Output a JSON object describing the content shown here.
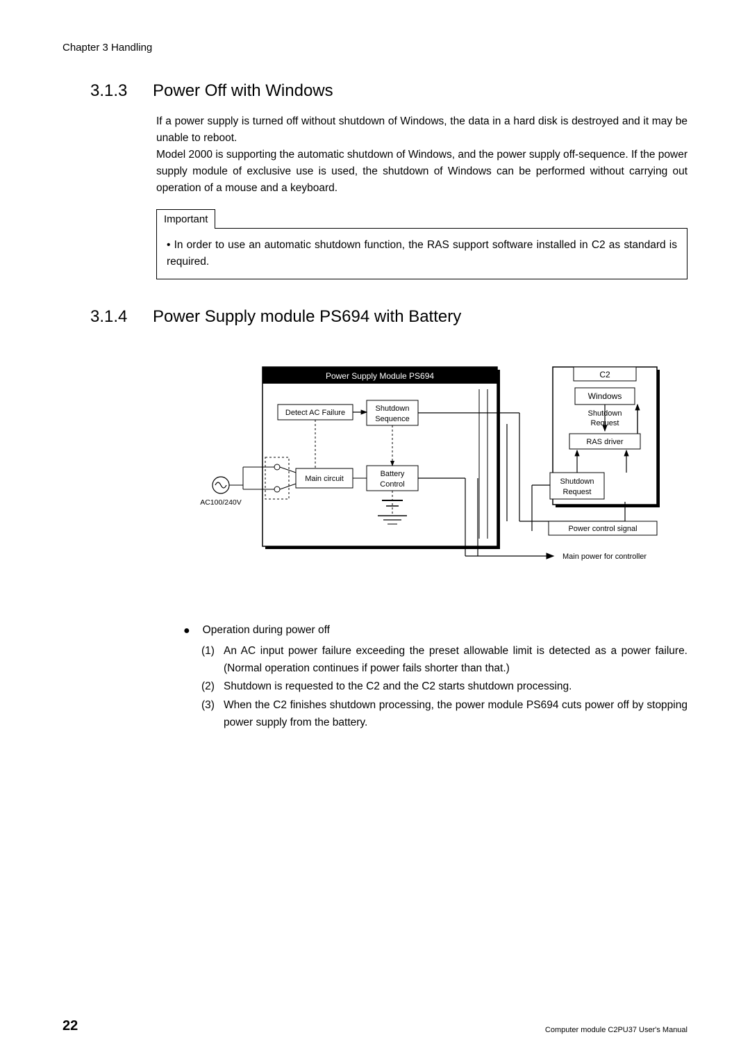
{
  "chapter_header": "Chapter 3 Handling",
  "section313": {
    "num": "3.1.3",
    "title": "Power Off with Windows",
    "para": "If a power supply is turned off without shutdown of Windows, the data in a hard disk is destroyed and it may be unable to reboot.\nModel 2000 is supporting the automatic shutdown of Windows, and the power supply off-sequence. If the power supply module of exclusive use is used, the shutdown of Windows can be performed without carrying out operation of a mouse and a keyboard."
  },
  "important": {
    "label": "Important",
    "text": "• In order to use an automatic shutdown function, the RAS support software installed in C2 as standard is required."
  },
  "section314": {
    "num": "3.1.4",
    "title": "Power Supply module PS694 with Battery"
  },
  "diagram": {
    "ps694_title": "Power Supply Module PS694",
    "c2_title": "C2",
    "windows": "Windows",
    "shutdown_req1": "Shutdown",
    "shutdown_req2": "Request",
    "ras_driver": "RAS driver",
    "shutdown_req_box1": "Shutdown",
    "shutdown_req_box2": "Request",
    "detect_ac": "Detect AC Failure",
    "shut_seq1": "Shutdown",
    "shut_seq2": "Sequence",
    "main_circuit": "Main circuit",
    "battery_ctrl1": "Battery",
    "battery_ctrl2": "Control",
    "ac_label": "AC100/240V",
    "pcs": "Power control signal",
    "main_power": "Main power for controller"
  },
  "bullets": {
    "main": "Operation during power off",
    "items": [
      {
        "n": "(1)",
        "t": "An AC input power failure exceeding the preset allowable limit is detected as a power failure. (Normal operation continues if power fails shorter than that.)"
      },
      {
        "n": "(2)",
        "t": "Shutdown is requested to the C2 and the C2 starts shutdown processing."
      },
      {
        "n": "(3)",
        "t": "When the C2 finishes shutdown processing, the power module PS694 cuts power off by stopping power supply from the battery."
      }
    ]
  },
  "footer": {
    "page": "22",
    "text": "Computer module C2PU37 User's Manual"
  }
}
